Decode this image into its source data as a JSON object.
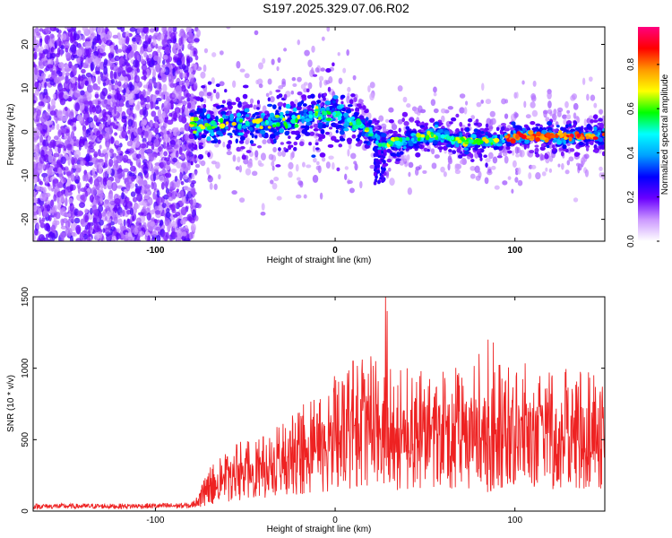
{
  "title": "S197.2025.329.07.06.R02",
  "colors": {
    "snr_line": "#ee2222",
    "axis": "#000000",
    "background": "#ffffff"
  },
  "chart_data": [
    {
      "type": "heatmap",
      "name": "spectrogram",
      "xlabel": "Height of straight line (km)",
      "ylabel": "Frequency (Hz)",
      "xlim": [
        -168,
        150
      ],
      "ylim": [
        -25,
        24
      ],
      "xticks": [
        "-100",
        "0",
        "100"
      ],
      "yticks": [
        "20",
        "10",
        "0",
        "-10",
        "-20"
      ],
      "colorbar": {
        "label": "Normalized spectral amplitude",
        "range": [
          0.0,
          0.97
        ],
        "ticks": [
          "0.0",
          "0.2",
          "0.4",
          "0.6",
          "0.8"
        ],
        "colormap": [
          "#ffffff",
          "#cc99ff",
          "#6a00ff",
          "#0000ff",
          "#00a0ff",
          "#00ffff",
          "#00ff00",
          "#ffff00",
          "#ff9900",
          "#ff0000",
          "#ff0080"
        ]
      },
      "ridge_center_hz": {
        "x": [
          -80,
          -60,
          -40,
          -20,
          -10,
          0,
          10,
          20,
          25,
          30,
          40,
          50,
          60,
          70,
          80,
          90,
          100,
          110,
          120,
          130,
          140,
          150
        ],
        "y": [
          1,
          2,
          2,
          3,
          4,
          4,
          2,
          0,
          -3,
          -3,
          -2,
          -1,
          -1,
          -2,
          -2,
          -2,
          -1,
          -1,
          -1,
          -1,
          -1,
          -1
        ]
      },
      "noise_region_km": [
        -168,
        -80
      ]
    },
    {
      "type": "line",
      "name": "snr",
      "xlabel": "Height of straight line (km)",
      "ylabel": "SNR (10 * v/v)",
      "xlim": [
        -168,
        150
      ],
      "ylim": [
        0,
        1500
      ],
      "xticks": [
        "-100",
        "0",
        "100"
      ],
      "yticks": [
        "0",
        "500",
        "1000",
        "1500"
      ],
      "envelope": {
        "x": [
          -168,
          -120,
          -80,
          -75,
          -70,
          -60,
          -50,
          -40,
          -30,
          -20,
          -10,
          0,
          5,
          10,
          20,
          30,
          40,
          50,
          60,
          70,
          80,
          85,
          90,
          100,
          110,
          120,
          130,
          140,
          150
        ],
        "y": [
          40,
          40,
          45,
          100,
          180,
          250,
          300,
          330,
          380,
          430,
          500,
          560,
          600,
          650,
          650,
          600,
          580,
          600,
          600,
          600,
          600,
          500,
          600,
          620,
          600,
          600,
          590,
          580,
          590
        ]
      },
      "peaks": {
        "x": [
          -60,
          -40,
          -25,
          -10,
          5,
          10,
          20,
          28,
          29,
          40,
          55,
          65,
          80,
          85,
          88,
          120,
          140
        ],
        "y": [
          380,
          520,
          560,
          680,
          880,
          1050,
          980,
          1500,
          1400,
          1000,
          800,
          820,
          1100,
          1200,
          1180,
          820,
          720
        ]
      }
    }
  ]
}
